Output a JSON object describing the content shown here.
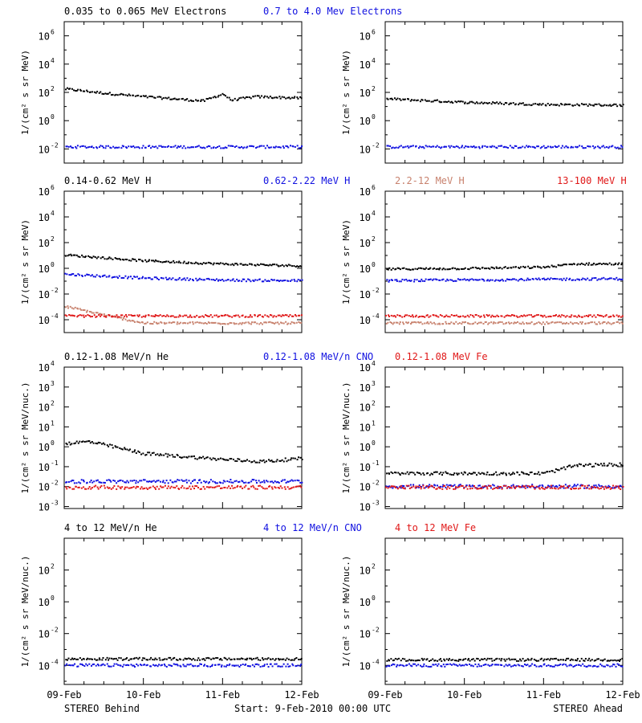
{
  "colors": {
    "black": "#000000",
    "blue": "#1010e0",
    "tan": "#c8826e",
    "red": "#e01818"
  },
  "footer": {
    "left": "STEREO Behind",
    "center": "Start:  9-Feb-2010 00:00 UTC",
    "right": "STEREO Ahead"
  },
  "chart_data": [
    {
      "type": "scatter",
      "title_entries": [
        {
          "text": "0.035 to 0.065 MeV Electrons",
          "color": "#000000"
        },
        {
          "text": "0.7 to 4.0 Mev Electrons",
          "color": "#1010e0"
        }
      ],
      "ylabel": "1/(cm² s sr MeV)",
      "yscale": "log",
      "ylim_log10": [
        -3,
        7
      ],
      "ytick_exponents": [
        -2,
        0,
        2,
        4,
        6
      ],
      "x": [
        "09-Feb",
        "10-Feb",
        "11-Feb",
        "12-Feb"
      ],
      "xlim_days": [
        0,
        3
      ],
      "panels": [
        {
          "name": "STEREO Behind",
          "series": [
            {
              "color": "#000000",
              "x_days": [
                0,
                0.5,
                1,
                1.5,
                1.75,
                2.0,
                2.1,
                2.4,
                3.0
              ],
              "y_log10": [
                2.3,
                2.0,
                1.75,
                1.55,
                1.45,
                1.95,
                1.5,
                1.75,
                1.65
              ]
            },
            {
              "color": "#1010e0",
              "x_days": [
                0,
                1,
                2,
                3
              ],
              "y_log10": [
                -1.8,
                -1.8,
                -1.8,
                -1.8
              ]
            }
          ]
        },
        {
          "name": "STEREO Ahead",
          "series": [
            {
              "color": "#000000",
              "x_days": [
                0,
                1,
                2,
                3
              ],
              "y_log10": [
                1.6,
                1.35,
                1.2,
                1.15
              ]
            },
            {
              "color": "#1010e0",
              "x_days": [
                0,
                1,
                2,
                3
              ],
              "y_log10": [
                -1.8,
                -1.8,
                -1.8,
                -1.8
              ]
            }
          ]
        }
      ]
    },
    {
      "type": "scatter",
      "title_entries": [
        {
          "text": "0.14-0.62 MeV H",
          "color": "#000000"
        },
        {
          "text": "0.62-2.22 MeV H",
          "color": "#1010e0"
        },
        {
          "text": "2.2-12 MeV H",
          "color": "#c8826e"
        },
        {
          "text": "13-100 MeV H",
          "color": "#e01818"
        }
      ],
      "ylabel": "1/(cm² s sr MeV)",
      "yscale": "log",
      "ylim_log10": [
        -5,
        6
      ],
      "ytick_exponents": [
        -4,
        -2,
        0,
        2,
        4,
        6
      ],
      "x": [
        "09-Feb",
        "10-Feb",
        "11-Feb",
        "12-Feb"
      ],
      "xlim_days": [
        0,
        3
      ],
      "panels": [
        {
          "name": "STEREO Behind",
          "series": [
            {
              "color": "#000000",
              "x_days": [
                0,
                1,
                2,
                3
              ],
              "y_log10": [
                1.1,
                0.65,
                0.4,
                0.25
              ]
            },
            {
              "color": "#1010e0",
              "x_days": [
                0,
                1,
                2,
                3
              ],
              "y_log10": [
                -0.4,
                -0.7,
                -0.85,
                -0.9
              ]
            },
            {
              "color": "#c8826e",
              "x_days": [
                0,
                0.3,
                0.6,
                1.0,
                3.0
              ],
              "y_log10": [
                -2.9,
                -3.3,
                -3.7,
                -4.2,
                -4.2
              ]
            },
            {
              "color": "#e01818",
              "x_days": [
                0,
                3
              ],
              "y_log10": [
                -3.65,
                -3.65
              ]
            }
          ]
        },
        {
          "name": "STEREO Ahead",
          "series": [
            {
              "color": "#000000",
              "x_days": [
                0,
                1,
                2,
                2.4,
                3
              ],
              "y_log10": [
                0.0,
                0.05,
                0.15,
                0.4,
                0.4
              ]
            },
            {
              "color": "#1010e0",
              "x_days": [
                0,
                1,
                2,
                3
              ],
              "y_log10": [
                -0.9,
                -0.85,
                -0.8,
                -0.75
              ]
            },
            {
              "color": "#c8826e",
              "x_days": [
                0,
                3
              ],
              "y_log10": [
                -4.2,
                -4.2
              ]
            },
            {
              "color": "#e01818",
              "x_days": [
                0,
                3
              ],
              "y_log10": [
                -3.65,
                -3.65
              ]
            }
          ]
        }
      ]
    },
    {
      "type": "scatter",
      "title_entries": [
        {
          "text": "0.12-1.08 MeV/n He",
          "color": "#000000"
        },
        {
          "text": "0.12-1.08 MeV/n CNO",
          "color": "#1010e0"
        },
        {
          "text": "0.12-1.08 MeV Fe",
          "color": "#e01818"
        }
      ],
      "ylabel": "1/(cm² s sr MeV/nuc.)",
      "yscale": "log",
      "ylim_log10": [
        -3.1,
        4
      ],
      "ytick_exponents": [
        -3,
        -2,
        -1,
        0,
        1,
        2,
        3,
        4
      ],
      "x": [
        "09-Feb",
        "10-Feb",
        "11-Feb",
        "12-Feb"
      ],
      "xlim_days": [
        0,
        3
      ],
      "panels": [
        {
          "name": "STEREO Behind",
          "series": [
            {
              "color": "#000000",
              "x_days": [
                0,
                0.3,
                0.6,
                1.0,
                1.5,
                2.0,
                2.5,
                3.0
              ],
              "y_log10": [
                0.2,
                0.3,
                0.05,
                -0.3,
                -0.45,
                -0.6,
                -0.7,
                -0.55
              ]
            },
            {
              "color": "#1010e0",
              "x_days": [
                0,
                3
              ],
              "y_log10": [
                -1.7,
                -1.7
              ]
            },
            {
              "color": "#e01818",
              "x_days": [
                0,
                3
              ],
              "y_log10": [
                -2.0,
                -2.0
              ]
            }
          ]
        },
        {
          "name": "STEREO Ahead",
          "series": [
            {
              "color": "#000000",
              "x_days": [
                0,
                1,
                2,
                2.4,
                3
              ],
              "y_log10": [
                -1.3,
                -1.3,
                -1.3,
                -0.9,
                -0.85
              ]
            },
            {
              "color": "#1010e0",
              "x_days": [
                0,
                3
              ],
              "y_log10": [
                -1.95,
                -1.95
              ]
            },
            {
              "color": "#e01818",
              "x_days": [
                0,
                3
              ],
              "y_log10": [
                -2.0,
                -2.0
              ]
            }
          ]
        }
      ]
    },
    {
      "type": "scatter",
      "title_entries": [
        {
          "text": "4 to 12 MeV/n He",
          "color": "#000000"
        },
        {
          "text": "4 to 12 MeV/n CNO",
          "color": "#1010e0"
        },
        {
          "text": "4 to 12 MeV Fe",
          "color": "#e01818"
        }
      ],
      "ylabel": "1/(cm² s sr MeV/nuc.)",
      "yscale": "log",
      "ylim_log10": [
        -5.2,
        4
      ],
      "ytick_exponents": [
        -4,
        -2,
        0,
        2
      ],
      "x": [
        "09-Feb",
        "10-Feb",
        "11-Feb",
        "12-Feb"
      ],
      "xlim_days": [
        0,
        3
      ],
      "panels": [
        {
          "name": "STEREO Behind",
          "series": [
            {
              "color": "#000000",
              "x_days": [
                0,
                3
              ],
              "y_log10": [
                -3.55,
                -3.55
              ]
            },
            {
              "color": "#1010e0",
              "x_days": [
                0,
                3
              ],
              "y_log10": [
                -3.95,
                -3.95
              ]
            }
          ]
        },
        {
          "name": "STEREO Ahead",
          "series": [
            {
              "color": "#000000",
              "x_days": [
                0,
                3
              ],
              "y_log10": [
                -3.6,
                -3.6
              ]
            },
            {
              "color": "#1010e0",
              "x_days": [
                0,
                3
              ],
              "y_log10": [
                -3.95,
                -3.95
              ]
            }
          ]
        }
      ]
    }
  ]
}
